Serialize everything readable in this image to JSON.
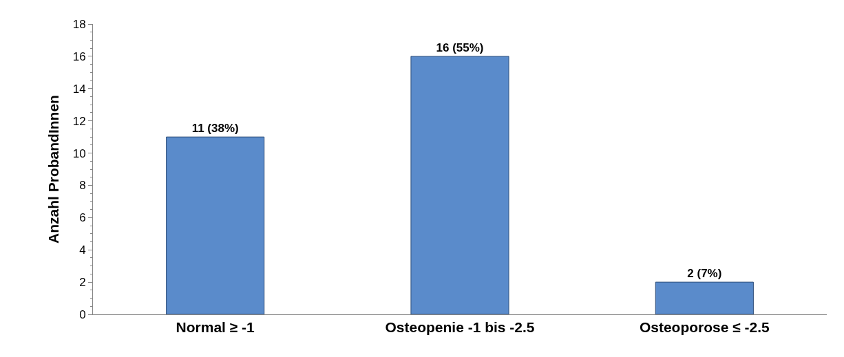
{
  "chart_data": {
    "type": "bar",
    "ylabel": "Anzahl ProbandInnen",
    "categories": [
      "Normal ≥ -1",
      "Osteopenie -1 bis -2.5",
      "Osteoporose ≤ -2.5"
    ],
    "values": [
      11,
      16,
      2
    ],
    "value_labels": [
      "11 (38%)",
      "16 (55%)",
      "2 (7%)"
    ],
    "color": "#5a8bcb",
    "ylim": [
      0,
      18
    ],
    "yticks": [
      0,
      2,
      4,
      6,
      8,
      10,
      12,
      14,
      16,
      18
    ]
  }
}
